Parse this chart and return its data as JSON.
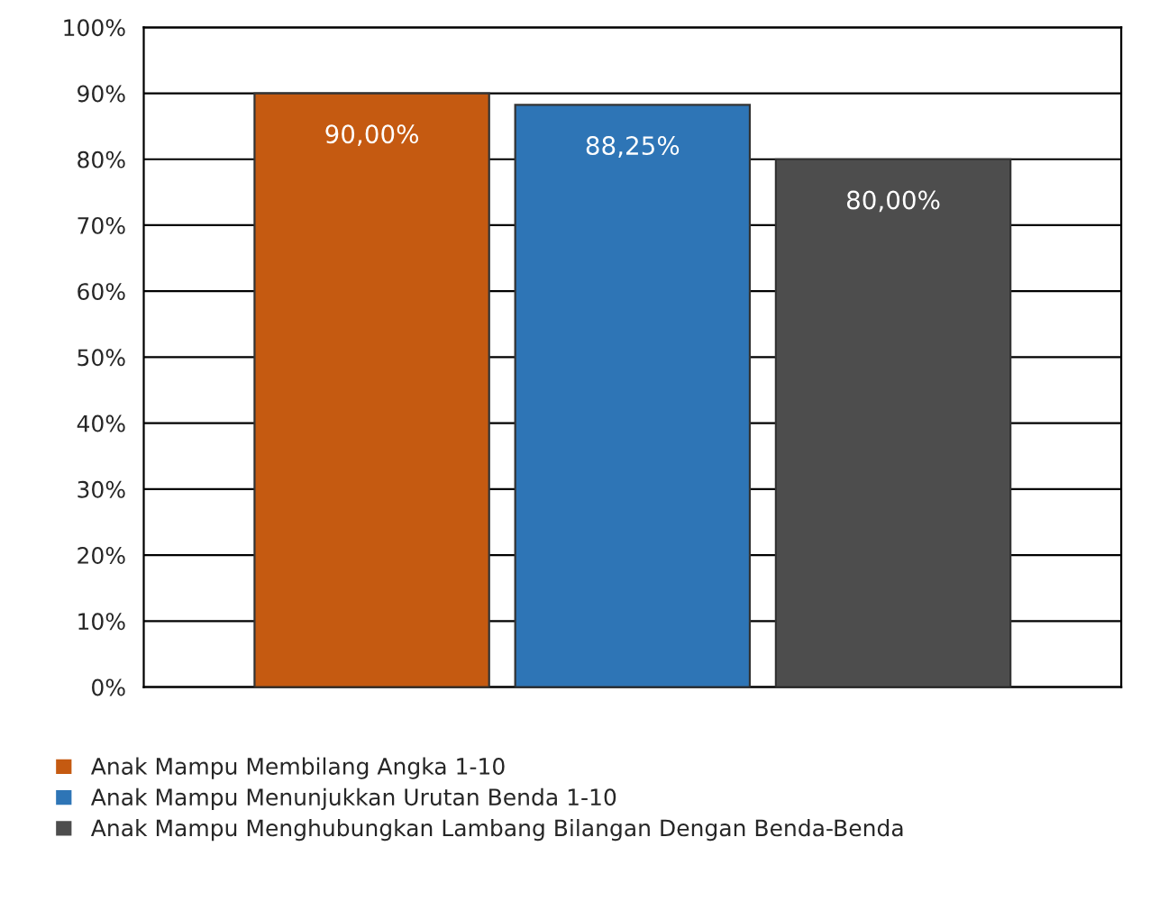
{
  "chart_data": {
    "type": "bar",
    "categories": [
      null
    ],
    "series": [
      {
        "name": "Anak Mampu Membilang Angka 1-10",
        "color": "#c55a11",
        "values": [
          90
        ],
        "value_labels": [
          "90,00%"
        ]
      },
      {
        "name": "Anak Mampu Menunjukkan Urutan Benda 1-10",
        "color": "#2e75b6",
        "values": [
          88.25
        ],
        "value_labels": [
          "88,25%"
        ]
      },
      {
        "name": "Anak Mampu Menghubungkan Lambang Bilangan Dengan Benda-Benda",
        "color": "#4d4d4d",
        "values": [
          80
        ],
        "value_labels": [
          "80,00%"
        ]
      }
    ],
    "ylim": [
      0,
      100
    ],
    "yticks": [
      {
        "value": 0,
        "label": "0%"
      },
      {
        "value": 10,
        "label": "10%"
      },
      {
        "value": 20,
        "label": "20%"
      },
      {
        "value": 30,
        "label": "30%"
      },
      {
        "value": 40,
        "label": "40%"
      },
      {
        "value": 50,
        "label": "50%"
      },
      {
        "value": 60,
        "label": "60%"
      },
      {
        "value": 70,
        "label": "70%"
      },
      {
        "value": 80,
        "label": "80%"
      },
      {
        "value": 90,
        "label": "90%"
      },
      {
        "value": 100,
        "label": "100%"
      }
    ],
    "grid": "y",
    "legend": "bottom"
  }
}
